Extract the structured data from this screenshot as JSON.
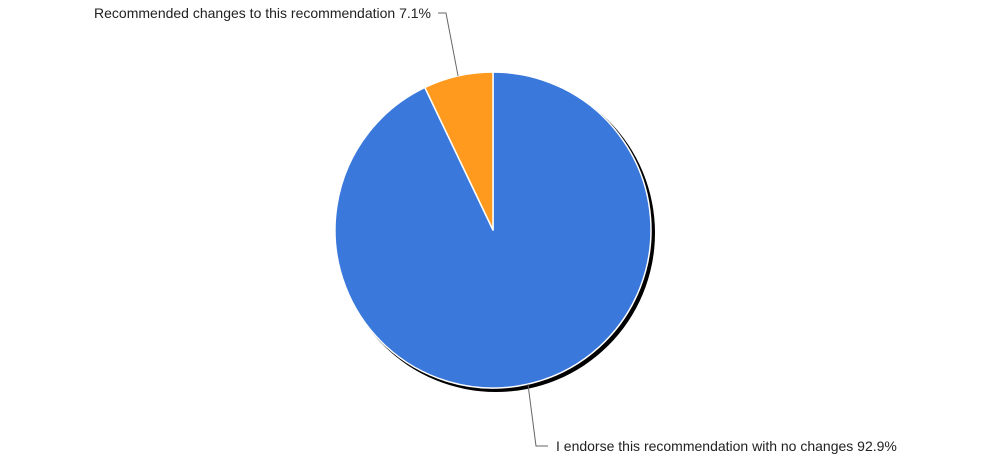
{
  "chart_data": {
    "type": "pie",
    "title": "",
    "slices": [
      {
        "label": "I endorse this recommendation with no changes",
        "value": 92.9,
        "value_label": "92.9%",
        "color": "#3a78dc"
      },
      {
        "label": "Recommended changes to this recommendation",
        "value": 7.1,
        "value_label": "7.1%",
        "color": "#ff9a1f"
      }
    ],
    "start_angle": "12 o'clock",
    "direction": "clockwise",
    "legend": "none",
    "label_style": "leader lines"
  },
  "colors": {
    "slice_border": "#ffffff",
    "shadow": "#000000",
    "leader_line": "#666666"
  }
}
